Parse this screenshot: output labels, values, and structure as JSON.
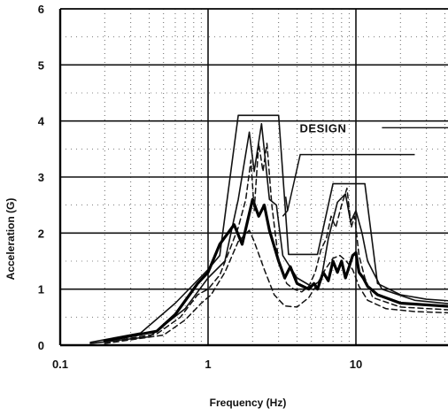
{
  "chart_data": {
    "type": "line",
    "title": "",
    "xlabel": "Frequency (Hz)",
    "ylabel": "Acceleration (G)",
    "xscale": "log",
    "xlim": [
      0.1,
      50
    ],
    "ylim": [
      0,
      6
    ],
    "grid": true,
    "x_ticks": [
      {
        "value": 0.1,
        "label": "0.1"
      },
      {
        "value": 1,
        "label": "1"
      },
      {
        "value": 10,
        "label": "10"
      }
    ],
    "y_ticks": [
      {
        "value": 0,
        "label": "0"
      },
      {
        "value": 1,
        "label": "1"
      },
      {
        "value": 2,
        "label": "2"
      },
      {
        "value": 3,
        "label": "3"
      },
      {
        "value": 4,
        "label": "4"
      },
      {
        "value": 5,
        "label": "5"
      },
      {
        "value": 6,
        "label": "6"
      }
    ],
    "annotations": [
      {
        "text": "DESIGN",
        "x": 6.0,
        "y": 3.88
      }
    ],
    "series": [
      {
        "style": "solid-thin",
        "points": [
          [
            0.16,
            0.05
          ],
          [
            0.35,
            0.22
          ],
          [
            0.6,
            0.75
          ],
          [
            1.0,
            1.35
          ],
          [
            1.2,
            1.6
          ],
          [
            1.6,
            4.1
          ],
          [
            2.0,
            4.1
          ],
          [
            2.6,
            4.1
          ],
          [
            3.0,
            4.1
          ],
          [
            3.5,
            1.62
          ],
          [
            5.5,
            1.62
          ],
          [
            7.0,
            2.88
          ],
          [
            10.0,
            2.88
          ],
          [
            11.5,
            2.88
          ],
          [
            14.0,
            1.1
          ],
          [
            20,
            0.9
          ],
          [
            30,
            0.82
          ],
          [
            50,
            0.78
          ]
        ]
      },
      {
        "style": "solid-thin",
        "points": [
          [
            0.16,
            0.03
          ],
          [
            0.4,
            0.15
          ],
          [
            0.7,
            0.65
          ],
          [
            1.0,
            1.2
          ],
          [
            1.3,
            1.5
          ],
          [
            1.6,
            2.6
          ],
          [
            1.9,
            3.8
          ],
          [
            2.05,
            3.1
          ],
          [
            2.3,
            3.95
          ],
          [
            2.6,
            2.6
          ],
          [
            2.9,
            2.5
          ],
          [
            3.2,
            1.6
          ],
          [
            4,
            1.2
          ],
          [
            5,
            1.05
          ],
          [
            5.8,
            1.15
          ],
          [
            6.5,
            1.9
          ],
          [
            7.5,
            2.55
          ],
          [
            8.5,
            2.7
          ],
          [
            9.2,
            2.2
          ],
          [
            10,
            2.4
          ],
          [
            11,
            2.0
          ],
          [
            12,
            1.5
          ],
          [
            15,
            1.0
          ],
          [
            25,
            0.8
          ],
          [
            50,
            0.72
          ]
        ]
      },
      {
        "style": "solid-thick",
        "points": [
          [
            0.2,
            0.08
          ],
          [
            0.45,
            0.25
          ],
          [
            0.6,
            0.55
          ],
          [
            0.75,
            0.9
          ],
          [
            0.85,
            1.1
          ],
          [
            1.0,
            1.3
          ],
          [
            1.2,
            1.8
          ],
          [
            1.5,
            2.15
          ],
          [
            1.7,
            1.8
          ],
          [
            2.0,
            2.6
          ],
          [
            2.2,
            2.3
          ],
          [
            2.4,
            2.5
          ],
          [
            2.6,
            2.05
          ],
          [
            3.0,
            1.5
          ],
          [
            3.3,
            1.2
          ],
          [
            3.6,
            1.4
          ],
          [
            4.0,
            1.1
          ],
          [
            4.8,
            1.0
          ],
          [
            5.2,
            1.1
          ],
          [
            5.5,
            1.0
          ],
          [
            6,
            1.3
          ],
          [
            6.5,
            1.15
          ],
          [
            7,
            1.5
          ],
          [
            7.5,
            1.3
          ],
          [
            8,
            1.5
          ],
          [
            8.5,
            1.2
          ],
          [
            9,
            1.4
          ],
          [
            9.5,
            1.6
          ],
          [
            10,
            1.65
          ],
          [
            10.5,
            1.3
          ],
          [
            11.2,
            1.2
          ],
          [
            12,
            1.05
          ],
          [
            14,
            0.9
          ],
          [
            20,
            0.75
          ],
          [
            50,
            0.68
          ]
        ]
      },
      {
        "style": "dashed",
        "points": [
          [
            0.2,
            0.05
          ],
          [
            0.45,
            0.2
          ],
          [
            0.65,
            0.5
          ],
          [
            0.85,
            0.9
          ],
          [
            1.0,
            1.0
          ],
          [
            1.2,
            1.25
          ],
          [
            1.4,
            1.7
          ],
          [
            1.6,
            2.1
          ],
          [
            1.8,
            2.6
          ],
          [
            1.95,
            3.3
          ],
          [
            2.05,
            2.4
          ],
          [
            2.2,
            3.6
          ],
          [
            2.35,
            3.1
          ],
          [
            2.5,
            3.6
          ],
          [
            2.7,
            2.5
          ],
          [
            3.0,
            1.5
          ],
          [
            3.4,
            1.1
          ],
          [
            3.8,
            1.0
          ],
          [
            4.3,
            0.95
          ],
          [
            4.8,
            1.05
          ],
          [
            5.3,
            1.3
          ],
          [
            5.8,
            1.7
          ],
          [
            6.3,
            1.9
          ],
          [
            6.8,
            2.3
          ],
          [
            7.3,
            2.1
          ],
          [
            8.0,
            2.5
          ],
          [
            8.7,
            2.8
          ],
          [
            9.3,
            2.1
          ],
          [
            9.8,
            2.3
          ],
          [
            10.5,
            1.6
          ],
          [
            11.5,
            1.2
          ],
          [
            13,
            0.85
          ],
          [
            20,
            0.68
          ],
          [
            50,
            0.62
          ]
        ]
      },
      {
        "style": "dashed",
        "points": [
          [
            0.2,
            0.03
          ],
          [
            0.5,
            0.18
          ],
          [
            0.7,
            0.45
          ],
          [
            0.9,
            0.75
          ],
          [
            1.05,
            0.9
          ],
          [
            1.3,
            1.3
          ],
          [
            1.6,
            1.85
          ],
          [
            1.9,
            2.05
          ],
          [
            2.05,
            1.85
          ],
          [
            2.4,
            1.35
          ],
          [
            2.8,
            0.9
          ],
          [
            3.3,
            0.7
          ],
          [
            4.0,
            0.68
          ],
          [
            4.8,
            0.85
          ],
          [
            5.5,
            1.1
          ],
          [
            6.2,
            1.35
          ],
          [
            7.0,
            1.55
          ],
          [
            7.8,
            1.6
          ],
          [
            8.6,
            1.5
          ],
          [
            9.5,
            1.35
          ],
          [
            10.5,
            1.05
          ],
          [
            12,
            0.8
          ],
          [
            16,
            0.65
          ],
          [
            25,
            0.6
          ],
          [
            50,
            0.57
          ]
        ]
      }
    ]
  }
}
